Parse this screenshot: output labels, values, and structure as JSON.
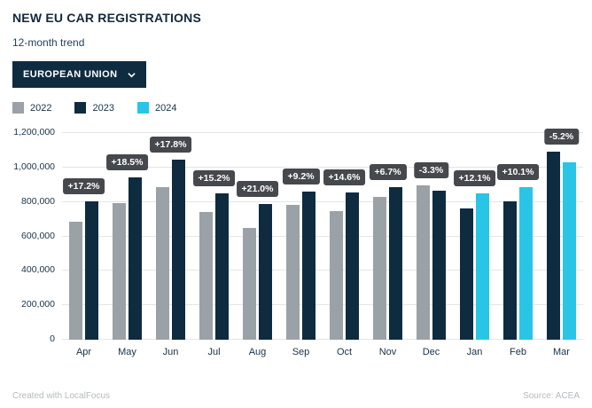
{
  "header": {
    "title": "NEW EU CAR REGISTRATIONS",
    "subtitle": "12-month trend",
    "dropdown_label": "EUROPEAN UNION"
  },
  "legend": [
    {
      "label": "2022",
      "color": "#9aa1a7"
    },
    {
      "label": "2023",
      "color": "#0f2b40"
    },
    {
      "label": "2024",
      "color": "#29c5e6"
    }
  ],
  "chart_data": {
    "type": "bar",
    "title": "NEW EU CAR REGISTRATIONS",
    "subtitle": "12-month trend",
    "categories": [
      "Apr",
      "May",
      "Jun",
      "Jul",
      "Aug",
      "Sep",
      "Oct",
      "Nov",
      "Dec",
      "Jan",
      "Feb",
      "Mar"
    ],
    "series": [
      {
        "name": "2022",
        "color": "#9aa1a7",
        "values": [
          685000,
          795000,
          885000,
          740000,
          650000,
          785000,
          745000,
          830000,
          895000,
          null,
          null,
          null
        ]
      },
      {
        "name": "2023",
        "color": "#0f2b40",
        "values": [
          805000,
          940000,
          1045000,
          850000,
          790000,
          860000,
          855000,
          885000,
          865000,
          760000,
          805000,
          1090000
        ]
      },
      {
        "name": "2024",
        "color": "#29c5e6",
        "values": [
          null,
          null,
          null,
          null,
          null,
          null,
          null,
          null,
          null,
          850000,
          885000,
          1030000
        ]
      }
    ],
    "labels": [
      "+17.2%",
      "+18.5%",
      "+17.8%",
      "+15.2%",
      "+21.0%",
      "+9.2%",
      "+14.6%",
      "+6.7%",
      "-3.3%",
      "+12.1%",
      "+10.1%",
      "-5.2%"
    ],
    "ylim": [
      0,
      1200000
    ],
    "yticks": [
      0,
      200000,
      400000,
      600000,
      800000,
      1000000,
      1200000
    ],
    "ytick_labels": [
      "0",
      "200,000",
      "400,000",
      "600,000",
      "800,000",
      "1,000,000",
      "1,200,000"
    ],
    "grid": true,
    "legend_position": "top",
    "badge_color": "#45484c"
  },
  "footer": {
    "left": "Created with LocalFocus",
    "right": "Source: ACEA"
  }
}
